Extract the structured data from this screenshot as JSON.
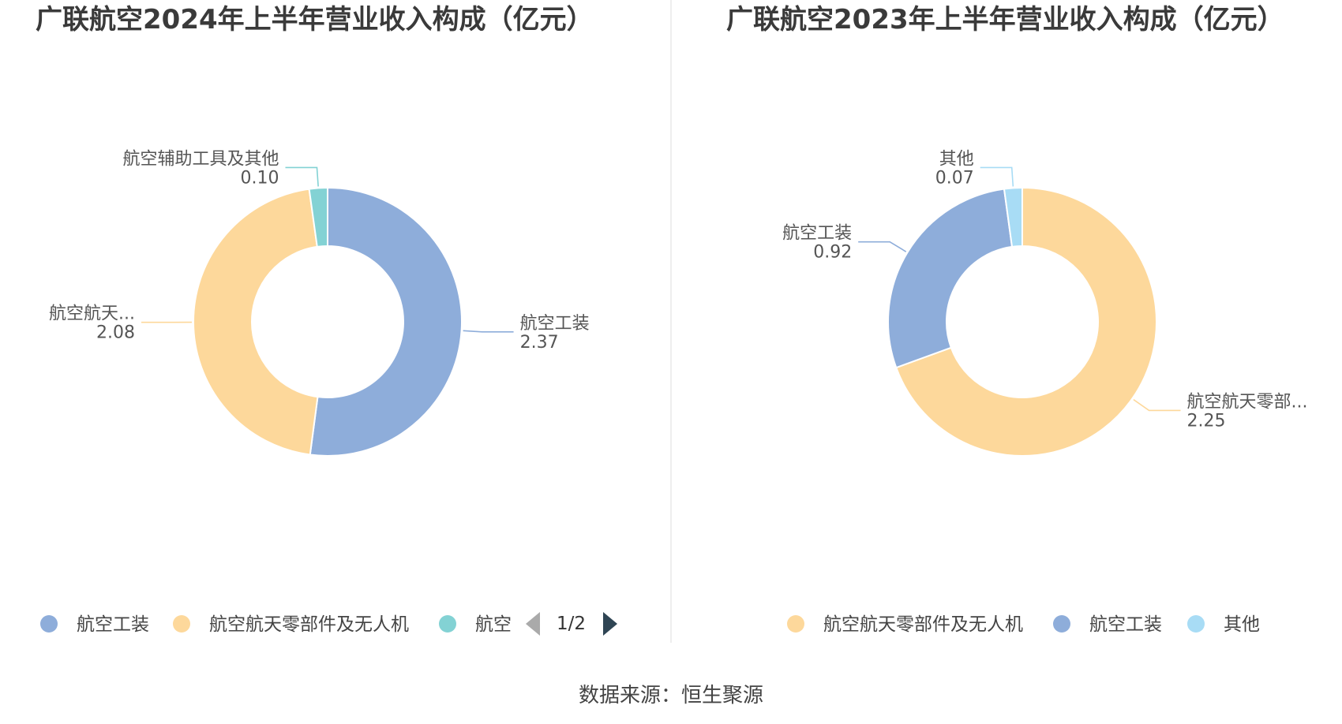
{
  "source": "数据来源：恒生聚源",
  "pager": {
    "text": "1/2"
  },
  "chart_data": [
    {
      "type": "pie",
      "title": "广联航空2024年上半年营业收入构成（亿元）",
      "categories": [
        "航空工装",
        "航空航天零部件及无人机",
        "航空辅助工具及其他"
      ],
      "labels": [
        "航空工装",
        "航空航天...",
        "航空辅助工具及其他"
      ],
      "values": [
        2.37,
        2.08,
        0.1
      ],
      "value_labels": [
        "2.37",
        "2.08",
        "0.10"
      ],
      "colors": [
        "#8eadda",
        "#fdd89b",
        "#83d2d4"
      ],
      "legend": [
        "航空工装",
        "航空航天零部件及无人机",
        "航空"
      ],
      "legend_colors": [
        "#8eadda",
        "#fdd89b",
        "#83d2d4"
      ],
      "legend_position": "bottom"
    },
    {
      "type": "pie",
      "title": "广联航空2023年上半年营业收入构成（亿元）",
      "categories": [
        "航空航天零部件及无人机",
        "航空工装",
        "其他"
      ],
      "labels": [
        "航空航天零部...",
        "航空工装",
        "其他"
      ],
      "values": [
        2.25,
        0.92,
        0.07
      ],
      "value_labels": [
        "2.25",
        "0.92",
        "0.07"
      ],
      "colors": [
        "#fdd89b",
        "#8eadda",
        "#a8dcf5"
      ],
      "legend": [
        "航空航天零部件及无人机",
        "航空工装",
        "其他"
      ],
      "legend_colors": [
        "#fdd89b",
        "#8eadda",
        "#a8dcf5"
      ],
      "legend_position": "bottom"
    }
  ]
}
